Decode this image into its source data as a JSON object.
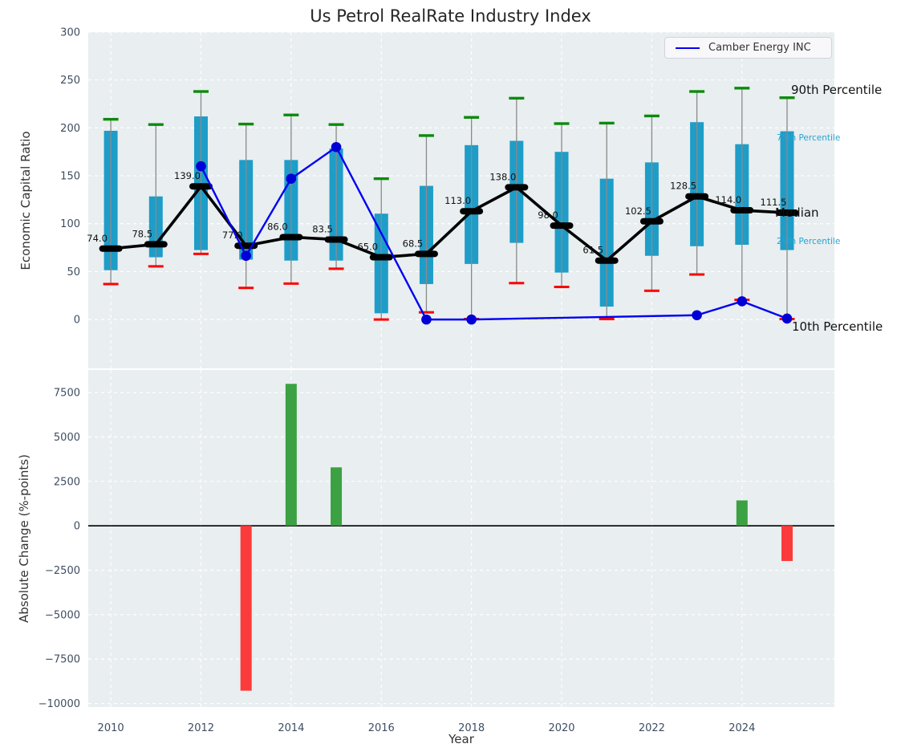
{
  "title": "Us Petrol RealRate Industry Index",
  "legend": {
    "label": "Camber Energy INC"
  },
  "axes": {
    "top_ylabel": "Economic Capital Ratio",
    "bottom_ylabel": "Absolute Change (%-points)",
    "xlabel": "Year"
  },
  "annotations": {
    "p90": "90th Percentile",
    "p75": "75th Percentile",
    "median": "Median",
    "p25": "25th Percentile",
    "p10": "10th Percentile"
  },
  "colors": {
    "plot_bg": "#e9eef0",
    "grid": "#ffffff",
    "tick_label": "#3e4d61",
    "box": "#1e9dc8",
    "whisker": "#8a8a8a",
    "cap_high": "#0c8b0c",
    "cap_low": "#fe0000",
    "median_line": "#000000",
    "median_label": "#111111",
    "camber_line": "#0000f2",
    "camber_marker": "#0000d6",
    "bar_positive": "#3ba142",
    "bar_negative": "#fb3b3b",
    "zero_line": "#000000"
  },
  "chart_data": [
    {
      "type": "box-percentile",
      "title": "Us Petrol RealRate Industry Index",
      "ylabel": "Economic Capital Ratio",
      "ylim": [
        -51,
        300
      ],
      "yticks": [
        0,
        50,
        100,
        150,
        200,
        250,
        300
      ],
      "xlim": [
        2009.5,
        2026.05
      ],
      "xticks": [
        2010,
        2012,
        2014,
        2016,
        2018,
        2020,
        2022,
        2024
      ],
      "grid": true,
      "legend_position": "upper right",
      "years": [
        2010,
        2011,
        2012,
        2013,
        2014,
        2015,
        2016,
        2017,
        2018,
        2019,
        2020,
        2021,
        2022,
        2023,
        2024,
        2025
      ],
      "p90": [
        209,
        203.5,
        238,
        204,
        213.5,
        203.5,
        147,
        192,
        211,
        231,
        204.5,
        205,
        212.5,
        238,
        241.5,
        231.5
      ],
      "p75": [
        197,
        128.5,
        212,
        166.5,
        166.5,
        178.5,
        110.5,
        139.5,
        182,
        186.5,
        175,
        147,
        164,
        206,
        183,
        196.5
      ],
      "median": [
        74.0,
        78.5,
        139.0,
        77.0,
        86.0,
        83.5,
        65.0,
        68.5,
        113.0,
        138.0,
        98.0,
        61.5,
        102.5,
        128.5,
        114.0,
        111.5
      ],
      "p25": [
        51.5,
        65,
        72.5,
        62.5,
        61.5,
        61.5,
        6.5,
        37,
        58,
        80,
        49,
        13.5,
        66.5,
        76.5,
        78,
        72.5
      ],
      "p10": [
        37,
        55.5,
        68.5,
        33,
        37.5,
        53,
        0,
        7.5,
        0.5,
        38,
        34,
        0.5,
        30,
        47,
        20.5,
        0.5
      ],
      "series": [
        {
          "name": "Camber Energy INC",
          "x": [
            2012,
            2013,
            2014,
            2015,
            2017,
            2018,
            2023,
            2024,
            2025
          ],
          "y": [
            160,
            66.5,
            147,
            180,
            0,
            0,
            4.5,
            19,
            1
          ]
        }
      ]
    },
    {
      "type": "bar",
      "ylabel": "Absolute Change (%-points)",
      "xlabel": "Year",
      "ylim": [
        -10200,
        8770
      ],
      "yticks": [
        -10000,
        -7500,
        -5000,
        -2500,
        0,
        2500,
        5000,
        7500
      ],
      "xlim": [
        2009.5,
        2026.05
      ],
      "xticks": [
        2010,
        2012,
        2014,
        2016,
        2018,
        2020,
        2022,
        2024
      ],
      "grid": true,
      "x": [
        2013,
        2014,
        2015,
        2024,
        2025
      ],
      "values": [
        -9280,
        7990,
        3290,
        1430,
        -1980
      ]
    }
  ]
}
